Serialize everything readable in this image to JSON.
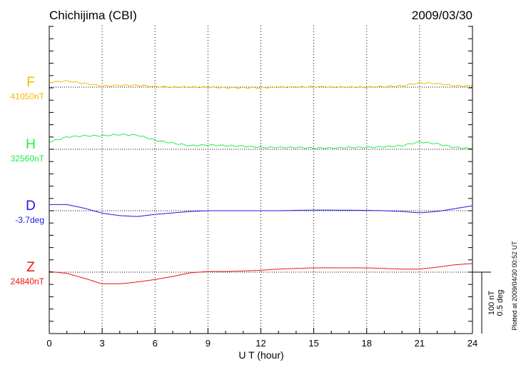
{
  "chart_data": {
    "type": "line",
    "title": "Chichijima (CBI)",
    "date": "2009/03/30",
    "xlabel": "U T (hour)",
    "xlim": [
      0,
      24
    ],
    "xticks": [
      0,
      3,
      6,
      9,
      12,
      15,
      18,
      21,
      24
    ],
    "grid": "dotted vertical lines every 3 hours, dotted baseline per component",
    "scale_bar": {
      "label_nt": "100 nT",
      "label_deg": "0.5 deg",
      "nT": 100,
      "deg": 0.5
    },
    "footnote": "Plotted at 2009/04/30 00:52 UT",
    "series": [
      {
        "name": "F",
        "baseline_label": "41050nT",
        "unit": "nT",
        "color": "#f5b800",
        "x": [
          0,
          1,
          2,
          3,
          4,
          5,
          6,
          7,
          8,
          9,
          10,
          11,
          12,
          13,
          14,
          15,
          16,
          17,
          18,
          19,
          20,
          21,
          22,
          23,
          24
        ],
        "values": [
          8,
          10,
          6,
          2,
          3,
          3,
          1,
          0,
          0,
          0,
          -1,
          -1,
          -1,
          0,
          0,
          1,
          0,
          0,
          0,
          1,
          2,
          7,
          6,
          2,
          2
        ]
      },
      {
        "name": "H",
        "baseline_label": "32560nT",
        "unit": "nT",
        "color": "#22ee44",
        "x": [
          0,
          1,
          2,
          3,
          4,
          5,
          6,
          7,
          8,
          9,
          10,
          11,
          12,
          13,
          14,
          15,
          16,
          17,
          18,
          19,
          20,
          21,
          22,
          23,
          24
        ],
        "values": [
          12,
          20,
          22,
          22,
          24,
          23,
          15,
          10,
          6,
          7,
          6,
          5,
          3,
          3,
          3,
          2,
          2,
          3,
          3,
          4,
          6,
          12,
          9,
          3,
          1
        ]
      },
      {
        "name": "D",
        "baseline_label": "-3.7deg",
        "unit": "deg",
        "color": "#1a1ae6",
        "x": [
          0,
          1,
          2,
          3,
          4,
          5,
          6,
          7,
          8,
          9,
          10,
          11,
          12,
          13,
          14,
          15,
          16,
          17,
          18,
          19,
          20,
          21,
          22,
          23,
          24
        ],
        "values": [
          0.05,
          0.05,
          0.02,
          -0.02,
          -0.04,
          -0.047,
          -0.03,
          -0.018,
          -0.006,
          0,
          0,
          0,
          0,
          0,
          0.003,
          0.005,
          0.005,
          0.004,
          0.003,
          0,
          -0.006,
          -0.017,
          -0.006,
          0.017,
          0.04
        ]
      },
      {
        "name": "Z",
        "baseline_label": "24840nT",
        "unit": "nT",
        "color": "#ee1111",
        "x": [
          0,
          1,
          2,
          3,
          4,
          5,
          6,
          7,
          8,
          9,
          10,
          11,
          12,
          13,
          14,
          15,
          16,
          17,
          18,
          19,
          20,
          21,
          22,
          23,
          24
        ],
        "values": [
          1,
          -2,
          -10,
          -19,
          -19,
          -16,
          -12,
          -7,
          -1,
          1,
          1,
          2,
          3,
          5,
          6,
          7,
          7,
          7,
          7,
          6,
          5,
          5,
          8,
          12,
          14
        ]
      }
    ]
  }
}
